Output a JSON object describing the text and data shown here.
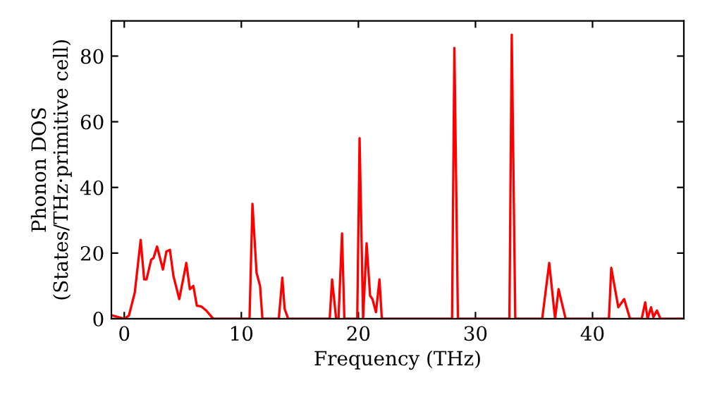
{
  "chart_data": {
    "type": "line",
    "xlabel": "Frequency (THz)",
    "ylabel": "Phonon DOS\n(States/THz·primitive cell)",
    "xlim": [
      -1.1,
      47.8
    ],
    "ylim": [
      0,
      90.7
    ],
    "xticks": [
      0,
      10,
      20,
      30,
      40
    ],
    "yticks": [
      0,
      20,
      40,
      60,
      80
    ],
    "grid": false,
    "marker": "none",
    "line_style": "solid",
    "series": [
      {
        "color": "#ff0000",
        "x": [
          -1.0,
          0,
          0.4,
          0.9,
          1.4,
          1.7,
          1.9,
          2.3,
          2.5,
          2.8,
          3.3,
          3.6,
          3.9,
          4.2,
          4.7,
          5.3,
          5.6,
          5.9,
          6.2,
          6.6,
          7.0,
          7.6,
          10.7,
          10.95,
          11.3,
          11.6,
          11.8,
          13.2,
          13.5,
          13.7,
          14.0,
          17.55,
          17.75,
          18.1,
          18.3,
          18.6,
          18.8,
          19.9,
          20.1,
          20.4,
          20.7,
          21.0,
          21.2,
          21.5,
          21.8,
          22.0,
          28.0,
          28.2,
          28.5,
          32.9,
          33.1,
          33.4,
          35.7,
          36.3,
          36.8,
          37.1,
          37.7,
          41.4,
          41.6,
          42.2,
          42.7,
          43.2,
          44.2,
          44.5,
          44.7,
          45.0,
          45.2,
          45.5,
          45.8,
          47.8
        ],
        "values": [
          1,
          0,
          1,
          8,
          24,
          12,
          12,
          18,
          18.5,
          22,
          15,
          20.5,
          21,
          13,
          6,
          17,
          9,
          10,
          4,
          3.7,
          2.5,
          0,
          0,
          35,
          14,
          10,
          0,
          0,
          12.5,
          3,
          0,
          0,
          12,
          0,
          0,
          26,
          0,
          0,
          55,
          0,
          23,
          7,
          6,
          2,
          12,
          0,
          0,
          82.5,
          0,
          0,
          86.5,
          0,
          0,
          17,
          0,
          9,
          0,
          0,
          15.5,
          3.5,
          6,
          0,
          0,
          5,
          0,
          3.5,
          0.5,
          2.5,
          0,
          0
        ]
      }
    ]
  }
}
